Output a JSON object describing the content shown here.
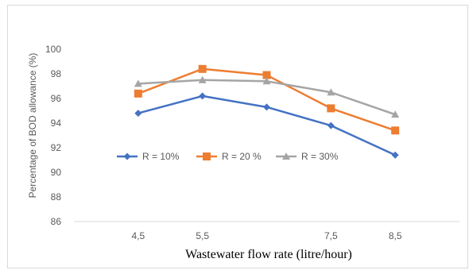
{
  "chart_data": {
    "type": "line",
    "title": "",
    "xlabel": "Wastewater flow rate (litre/hour)",
    "ylabel": "Percentage of BOD allowance (%)",
    "x_tick_labels": [
      "4,5",
      "5,5",
      "7,5",
      "8,5"
    ],
    "ylim": [
      86,
      100
    ],
    "y_ticks": [
      86,
      88,
      90,
      92,
      94,
      96,
      98,
      100
    ],
    "grid": false,
    "legend_position": "center-left",
    "series": [
      {
        "name": "R = 10%",
        "color": "#4472C4",
        "marker": "diamond",
        "x": [
          4.5,
          5.5,
          6.5,
          7.5,
          8.5
        ],
        "values": [
          94.8,
          96.2,
          95.3,
          93.8,
          91.4
        ]
      },
      {
        "name": "R = 20 %",
        "color": "#ED7D31",
        "marker": "square",
        "x": [
          4.5,
          5.5,
          6.5,
          7.5,
          8.5
        ],
        "values": [
          96.4,
          98.4,
          97.9,
          95.2,
          93.4
        ]
      },
      {
        "name": "R = 30%",
        "color": "#A5A5A5",
        "marker": "triangle",
        "x": [
          4.5,
          5.5,
          6.5,
          7.5,
          8.5
        ],
        "values": [
          97.2,
          97.5,
          97.4,
          96.5,
          94.7
        ]
      }
    ]
  }
}
